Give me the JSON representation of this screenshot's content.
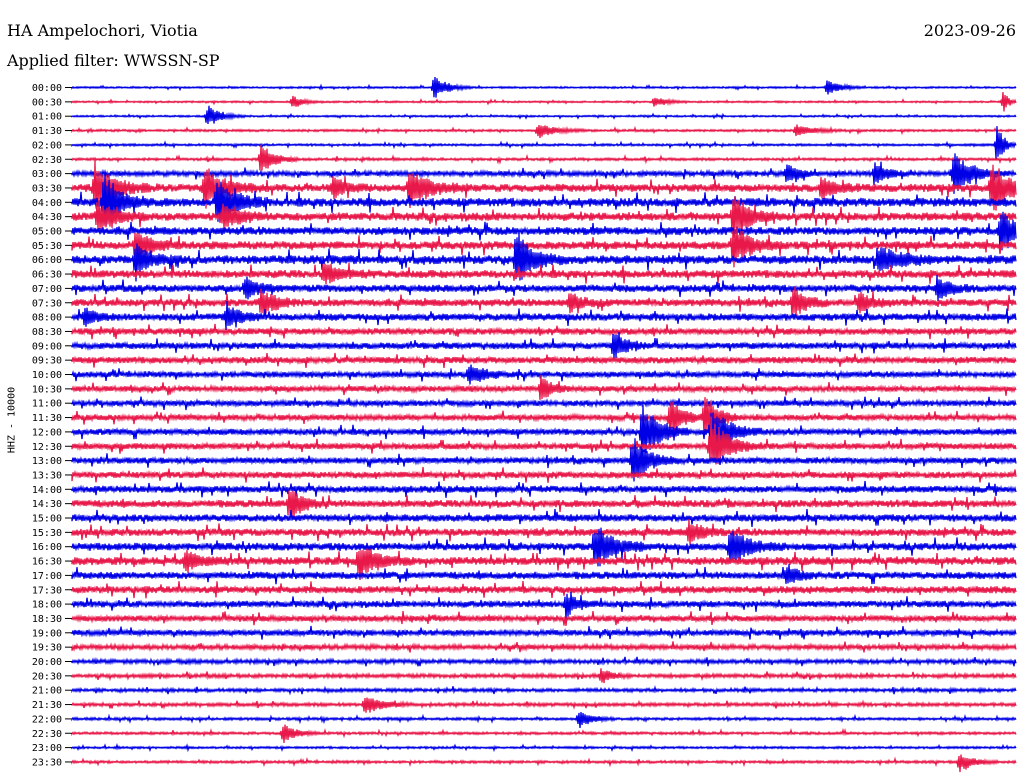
{
  "header": {
    "station": "HA Ampelochori, Viotia",
    "date": "2023-09-26",
    "filter": "Applied filter: WWSSN-SP"
  },
  "chart_data": {
    "type": "line",
    "title": "HA Ampelochori, Viotia",
    "subtitle": "Applied filter: WWSSN-SP",
    "ylabel": "HHZ - 10000",
    "xlabel": "",
    "grid": false,
    "row_labels": [
      "00:00",
      "00:30",
      "01:00",
      "01:30",
      "02:00",
      "02:30",
      "03:00",
      "03:30",
      "04:00",
      "04:30",
      "05:00",
      "05:30",
      "06:00",
      "06:30",
      "07:00",
      "07:30",
      "08:00",
      "08:30",
      "09:00",
      "09:30",
      "10:00",
      "10:30",
      "11:00",
      "11:30",
      "12:00",
      "12:30",
      "13:00",
      "13:30",
      "14:00",
      "14:30",
      "15:00",
      "15:30",
      "16:00",
      "16:30",
      "17:00",
      "17:30",
      "18:00",
      "18:30",
      "19:00",
      "19:30",
      "20:00",
      "20:30",
      "21:00",
      "21:30",
      "22:00",
      "22:30",
      "23:00",
      "23:30"
    ],
    "colors": {
      "even_rows": "#0000e6",
      "odd_rows": "#e8194a"
    },
    "row_span_minutes": 30,
    "noise_level": [
      0.4,
      0.4,
      0.4,
      0.5,
      0.5,
      0.6,
      1.2,
      2.0,
      2.2,
      2.0,
      2.0,
      2.0,
      2.2,
      2.0,
      1.8,
      1.8,
      1.8,
      1.6,
      1.6,
      1.6,
      1.4,
      1.4,
      1.4,
      1.4,
      1.5,
      1.5,
      1.5,
      1.6,
      1.7,
      1.8,
      1.8,
      1.8,
      1.9,
      2.0,
      1.8,
      1.8,
      1.6,
      1.5,
      1.4,
      1.2,
      1.0,
      0.9,
      0.8,
      0.8,
      0.6,
      0.6,
      0.5,
      0.6
    ],
    "events": [
      {
        "row": 0,
        "minute": 11.5,
        "amp": 14,
        "dur": 0.6
      },
      {
        "row": 0,
        "minute": 24.0,
        "amp": 8,
        "dur": 0.6
      },
      {
        "row": 1,
        "minute": 7.0,
        "amp": 6,
        "dur": 0.5
      },
      {
        "row": 1,
        "minute": 18.5,
        "amp": 6,
        "dur": 0.5
      },
      {
        "row": 1,
        "minute": 29.6,
        "amp": 14,
        "dur": 0.2
      },
      {
        "row": 2,
        "minute": 4.3,
        "amp": 12,
        "dur": 0.6
      },
      {
        "row": 3,
        "minute": 14.8,
        "amp": 8,
        "dur": 0.8
      },
      {
        "row": 3,
        "minute": 23.0,
        "amp": 6,
        "dur": 0.8
      },
      {
        "row": 4,
        "minute": 29.4,
        "amp": 24,
        "dur": 0.3
      },
      {
        "row": 5,
        "minute": 6.0,
        "amp": 18,
        "dur": 0.6
      },
      {
        "row": 6,
        "minute": 28.0,
        "amp": 22,
        "dur": 0.9
      },
      {
        "row": 6,
        "minute": 25.5,
        "amp": 12,
        "dur": 0.6
      },
      {
        "row": 6,
        "minute": 22.7,
        "amp": 10,
        "dur": 0.6
      },
      {
        "row": 7,
        "minute": 0.7,
        "amp": 25,
        "dur": 0.9
      },
      {
        "row": 7,
        "minute": 4.2,
        "amp": 22,
        "dur": 0.9
      },
      {
        "row": 7,
        "minute": 10.7,
        "amp": 18,
        "dur": 1.0
      },
      {
        "row": 7,
        "minute": 8.3,
        "amp": 10,
        "dur": 0.6
      },
      {
        "row": 7,
        "minute": 29.2,
        "amp": 28,
        "dur": 0.8
      },
      {
        "row": 7,
        "minute": 23.8,
        "amp": 10,
        "dur": 0.7
      },
      {
        "row": 8,
        "minute": 1.0,
        "amp": 30,
        "dur": 0.8
      },
      {
        "row": 8,
        "minute": 4.6,
        "amp": 26,
        "dur": 0.8
      },
      {
        "row": 9,
        "minute": 0.8,
        "amp": 16,
        "dur": 0.8
      },
      {
        "row": 9,
        "minute": 4.8,
        "amp": 14,
        "dur": 0.8
      },
      {
        "row": 9,
        "minute": 21.0,
        "amp": 22,
        "dur": 0.8
      },
      {
        "row": 10,
        "minute": 29.5,
        "amp": 24,
        "dur": 0.6
      },
      {
        "row": 11,
        "minute": 21.0,
        "amp": 22,
        "dur": 0.8
      },
      {
        "row": 11,
        "minute": 2.0,
        "amp": 14,
        "dur": 0.8
      },
      {
        "row": 12,
        "minute": 14.1,
        "amp": 26,
        "dur": 0.8
      },
      {
        "row": 12,
        "minute": 2.0,
        "amp": 14,
        "dur": 0.8
      },
      {
        "row": 12,
        "minute": 25.6,
        "amp": 14,
        "dur": 1.0
      },
      {
        "row": 13,
        "minute": 8.0,
        "amp": 10,
        "dur": 0.8
      },
      {
        "row": 14,
        "minute": 5.5,
        "amp": 12,
        "dur": 0.6
      },
      {
        "row": 14,
        "minute": 27.5,
        "amp": 12,
        "dur": 0.6
      },
      {
        "row": 15,
        "minute": 6.0,
        "amp": 14,
        "dur": 0.7
      },
      {
        "row": 15,
        "minute": 15.8,
        "amp": 10,
        "dur": 0.7
      },
      {
        "row": 15,
        "minute": 22.9,
        "amp": 16,
        "dur": 0.6
      },
      {
        "row": 15,
        "minute": 25.0,
        "amp": 12,
        "dur": 0.6
      },
      {
        "row": 16,
        "minute": 4.9,
        "amp": 14,
        "dur": 0.6
      },
      {
        "row": 16,
        "minute": 0.4,
        "amp": 8,
        "dur": 0.6
      },
      {
        "row": 18,
        "minute": 17.2,
        "amp": 14,
        "dur": 0.6
      },
      {
        "row": 20,
        "minute": 12.6,
        "amp": 10,
        "dur": 0.8
      },
      {
        "row": 21,
        "minute": 14.9,
        "amp": 14,
        "dur": 0.5
      },
      {
        "row": 23,
        "minute": 19.0,
        "amp": 20,
        "dur": 0.6
      },
      {
        "row": 23,
        "minute": 20.1,
        "amp": 26,
        "dur": 0.6
      },
      {
        "row": 24,
        "minute": 18.1,
        "amp": 30,
        "dur": 0.8
      },
      {
        "row": 24,
        "minute": 20.3,
        "amp": 30,
        "dur": 0.8
      },
      {
        "row": 25,
        "minute": 20.3,
        "amp": 30,
        "dur": 0.8
      },
      {
        "row": 26,
        "minute": 17.8,
        "amp": 24,
        "dur": 0.8
      },
      {
        "row": 29,
        "minute": 6.9,
        "amp": 18,
        "dur": 0.6
      },
      {
        "row": 31,
        "minute": 19.6,
        "amp": 12,
        "dur": 0.6
      },
      {
        "row": 32,
        "minute": 16.6,
        "amp": 24,
        "dur": 0.9
      },
      {
        "row": 32,
        "minute": 20.9,
        "amp": 20,
        "dur": 0.9
      },
      {
        "row": 33,
        "minute": 9.1,
        "amp": 18,
        "dur": 0.9
      },
      {
        "row": 33,
        "minute": 3.6,
        "amp": 10,
        "dur": 0.7
      },
      {
        "row": 34,
        "minute": 22.7,
        "amp": 10,
        "dur": 0.6
      },
      {
        "row": 36,
        "minute": 15.7,
        "amp": 12,
        "dur": 0.5
      },
      {
        "row": 41,
        "minute": 16.8,
        "amp": 8,
        "dur": 0.5
      },
      {
        "row": 43,
        "minute": 9.3,
        "amp": 10,
        "dur": 0.8
      },
      {
        "row": 44,
        "minute": 16.1,
        "amp": 10,
        "dur": 0.6
      },
      {
        "row": 45,
        "minute": 6.7,
        "amp": 10,
        "dur": 0.6
      },
      {
        "row": 47,
        "minute": 28.2,
        "amp": 10,
        "dur": 0.6
      }
    ]
  }
}
